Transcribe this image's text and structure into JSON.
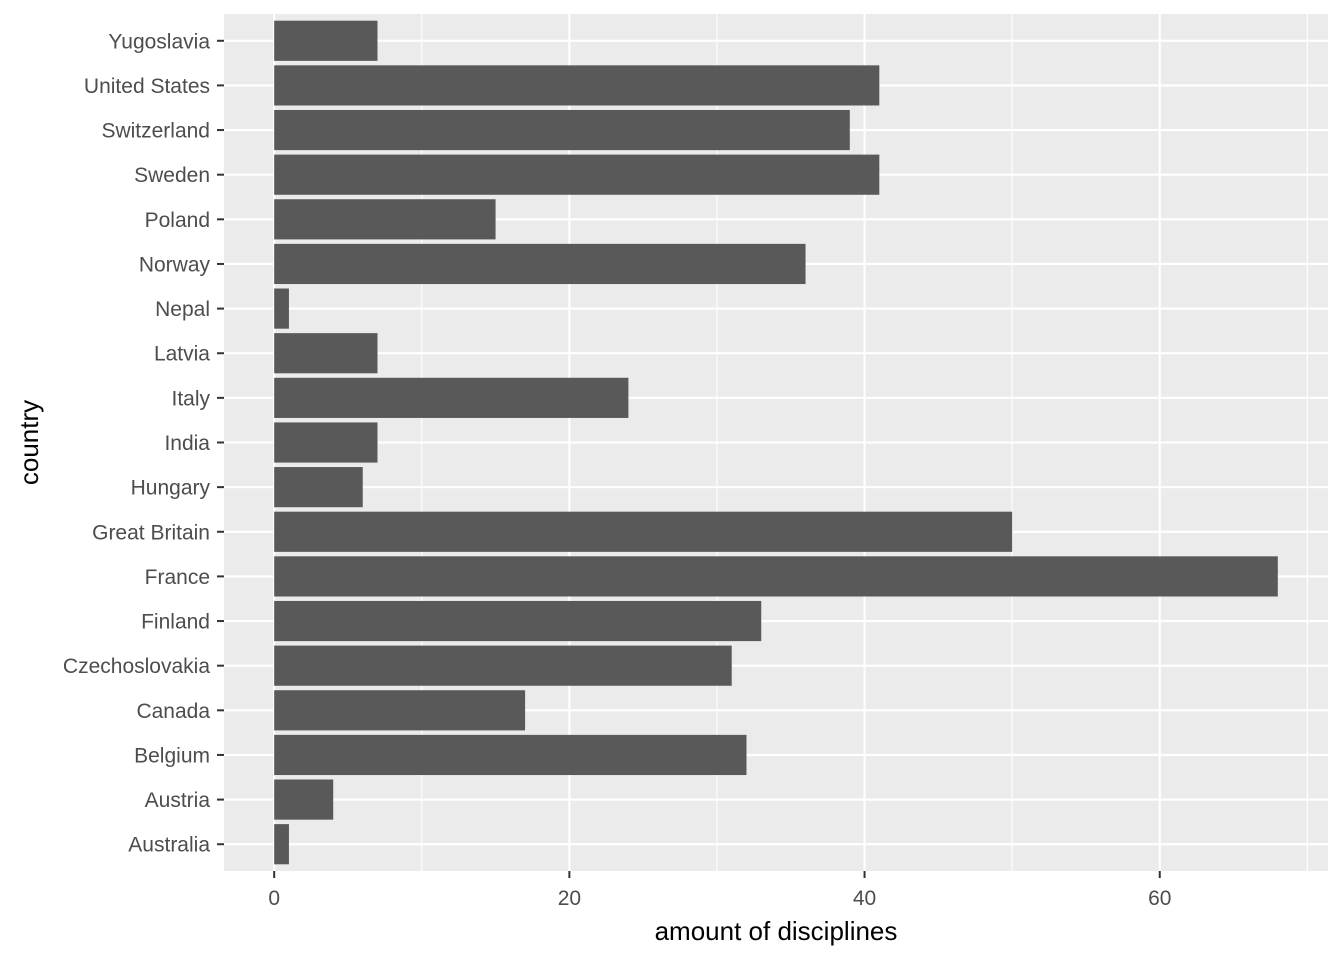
{
  "chart_data": {
    "type": "bar",
    "orientation": "horizontal",
    "title": "",
    "xlabel": "amount of disciplines",
    "ylabel": "country",
    "categories": [
      "Australia",
      "Austria",
      "Belgium",
      "Canada",
      "Czechoslovakia",
      "Finland",
      "France",
      "Great Britain",
      "Hungary",
      "India",
      "Italy",
      "Latvia",
      "Nepal",
      "Norway",
      "Poland",
      "Sweden",
      "Switzerland",
      "United States",
      "Yugoslavia"
    ],
    "values": [
      1,
      4,
      32,
      17,
      31,
      33,
      68,
      50,
      6,
      7,
      24,
      7,
      1,
      36,
      15,
      41,
      39,
      41,
      7
    ],
    "xlim": [
      -3.4,
      71.4
    ],
    "xticks": [
      0,
      20,
      40,
      60
    ],
    "xtick_labels": [
      "0",
      "20",
      "40",
      "60"
    ],
    "grid": true,
    "colors": {
      "bar": "#595959",
      "panel": "#ebebeb",
      "grid": "#ffffff",
      "tick_label": "#4d4d4d",
      "axis_title": "#000000"
    }
  }
}
